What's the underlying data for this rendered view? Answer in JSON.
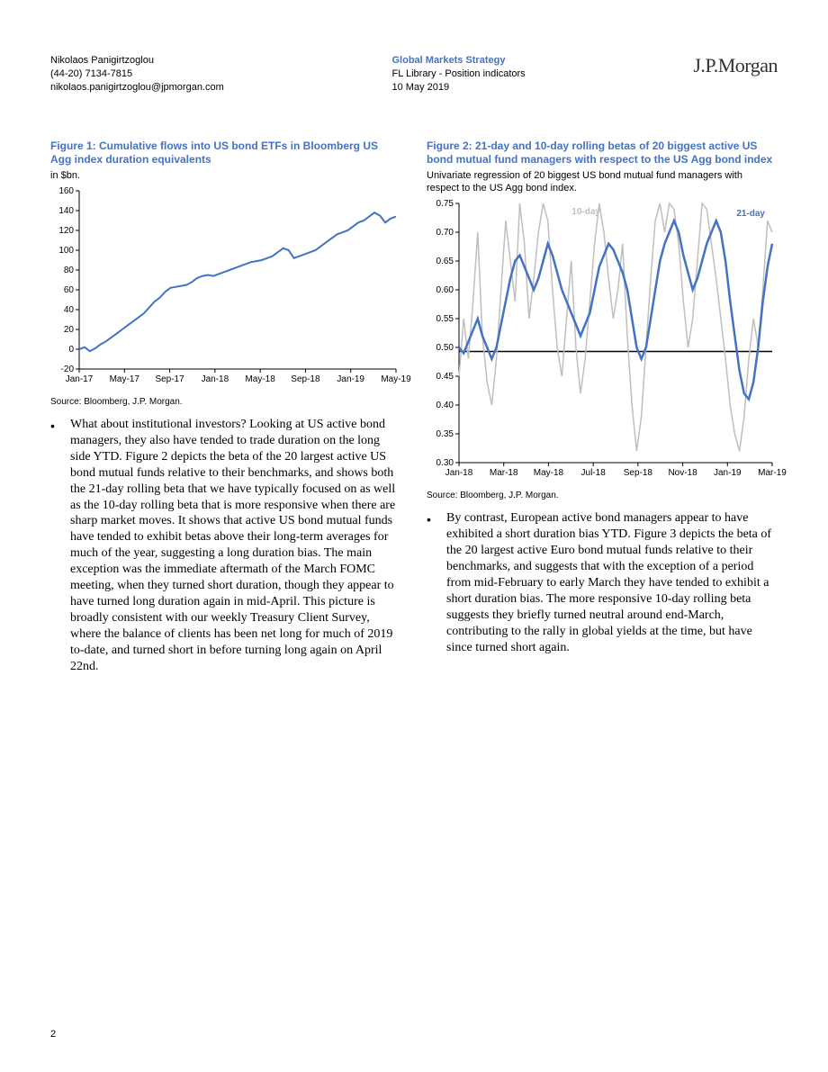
{
  "header": {
    "author_name": "Nikolaos Panigirtzoglou",
    "author_phone": "(44-20) 7134-7815",
    "author_email": "nikolaos.panigirtzoglou@jpmorgan.com",
    "strategy": "Global Markets Strategy",
    "doc_title": "FL Library - Position indicators",
    "date": "10 May 2019",
    "logo": "J.P.Morgan"
  },
  "figure1": {
    "type": "line",
    "title": "Figure 1: Cumulative flows into US bond ETFs in Bloomberg US Agg index duration equivalents",
    "subtitle": "in $bn.",
    "source": "Source: Bloomberg, J.P. Morgan.",
    "ylim": [
      -20,
      160
    ],
    "ytick_step": 20,
    "yticks": [
      -20,
      0,
      20,
      40,
      60,
      80,
      100,
      120,
      140,
      160
    ],
    "xticks": [
      "Jan-17",
      "May-17",
      "Sep-17",
      "Jan-18",
      "May-18",
      "Sep-18",
      "Jan-19",
      "May-19"
    ],
    "series": {
      "color": "#4472c4",
      "line_width": 2,
      "values": [
        0,
        2,
        -2,
        1,
        5,
        8,
        12,
        16,
        20,
        24,
        28,
        32,
        36,
        42,
        48,
        52,
        58,
        62,
        63,
        64,
        65,
        68,
        72,
        74,
        75,
        74,
        76,
        78,
        80,
        82,
        84,
        86,
        88,
        89,
        90,
        92,
        94,
        98,
        102,
        100,
        92,
        94,
        96,
        98,
        100,
        104,
        108,
        112,
        116,
        118,
        120,
        124,
        128,
        130,
        134,
        138,
        135,
        128,
        132,
        134
      ]
    },
    "background_color": "#ffffff",
    "axis_color": "#000000",
    "tick_fontsize": 10
  },
  "figure2": {
    "type": "line",
    "title": "Figure 2: 21-day and 10-day rolling betas of 20 biggest active US bond mutual fund managers with respect to the US Agg bond index",
    "subtitle": "Univariate regression of 20 biggest US bond mutual fund managers with respect to the US Agg bond index.",
    "source": "Source: Bloomberg, J.P. Morgan.",
    "ylim": [
      0.3,
      0.75
    ],
    "ytick_step": 0.05,
    "yticks": [
      0.3,
      0.35,
      0.4,
      0.45,
      0.5,
      0.55,
      0.6,
      0.65,
      0.7,
      0.75
    ],
    "xticks": [
      "Jan-18",
      "Mar-18",
      "May-18",
      "Jul-18",
      "Sep-18",
      "Nov-18",
      "Jan-19",
      "Mar-19"
    ],
    "ref_line": {
      "y": 0.493,
      "color": "#000000",
      "width": 1.5
    },
    "series_21day": {
      "label": "21-day",
      "color": "#4472c4",
      "line_width": 2.5,
      "values": [
        0.5,
        0.49,
        0.51,
        0.53,
        0.55,
        0.52,
        0.5,
        0.48,
        0.5,
        0.54,
        0.58,
        0.62,
        0.65,
        0.66,
        0.64,
        0.62,
        0.6,
        0.62,
        0.65,
        0.68,
        0.66,
        0.63,
        0.6,
        0.58,
        0.56,
        0.54,
        0.52,
        0.54,
        0.56,
        0.6,
        0.64,
        0.66,
        0.68,
        0.67,
        0.65,
        0.63,
        0.6,
        0.55,
        0.5,
        0.48,
        0.5,
        0.55,
        0.6,
        0.65,
        0.68,
        0.7,
        0.72,
        0.7,
        0.66,
        0.63,
        0.6,
        0.62,
        0.65,
        0.68,
        0.7,
        0.72,
        0.7,
        0.65,
        0.58,
        0.52,
        0.46,
        0.42,
        0.41,
        0.44,
        0.5,
        0.58,
        0.64,
        0.68
      ]
    },
    "series_10day": {
      "label": "10-day",
      "color": "#bfbfbf",
      "line_width": 1.5,
      "values": [
        0.45,
        0.55,
        0.48,
        0.58,
        0.7,
        0.52,
        0.44,
        0.4,
        0.48,
        0.6,
        0.72,
        0.65,
        0.58,
        0.75,
        0.68,
        0.55,
        0.62,
        0.7,
        0.75,
        0.72,
        0.6,
        0.5,
        0.45,
        0.55,
        0.65,
        0.5,
        0.42,
        0.48,
        0.58,
        0.68,
        0.75,
        0.7,
        0.62,
        0.55,
        0.6,
        0.68,
        0.52,
        0.4,
        0.32,
        0.38,
        0.5,
        0.62,
        0.72,
        0.75,
        0.7,
        0.75,
        0.74,
        0.68,
        0.58,
        0.5,
        0.55,
        0.65,
        0.75,
        0.74,
        0.68,
        0.62,
        0.55,
        0.48,
        0.4,
        0.35,
        0.32,
        0.38,
        0.48,
        0.55,
        0.5,
        0.6,
        0.72,
        0.7
      ]
    },
    "background_color": "#ffffff",
    "axis_color": "#000000",
    "tick_fontsize": 10
  },
  "body": {
    "para1": "What about institutional investors? Looking at US active bond managers, they also have tended to trade duration on the long side YTD. Figure 2 depicts the beta of the 20 largest active US bond mutual funds relative to their benchmarks, and shows both the 21-day rolling beta that we have typically focused on as well as the 10-day rolling beta that is more responsive when there are sharp market moves. It shows that active US bond mutual funds have tended to exhibit betas above their long-term averages for much of the year, suggesting a long duration bias. The main exception was the immediate aftermath of the March FOMC meeting, when they turned short duration, though they appear to have turned long duration again in mid-April. This picture is broadly consistent with our weekly Treasury Client Survey, where the balance of clients has been net long for much of 2019 to-date, and turned short in before turning long again on April 22nd.",
    "para2": "By contrast, European active bond managers appear to have exhibited a short duration bias YTD. Figure 3 depicts the beta of the 20 largest active Euro bond mutual funds relative to their benchmarks, and suggests that with the exception of a period from mid-February to early March they have tended to exhibit a short duration bias. The more responsive 10-day rolling beta suggests they briefly turned neutral around end-March, contributing to the rally in global yields at the time, but have since turned short again."
  },
  "page_number": "2"
}
